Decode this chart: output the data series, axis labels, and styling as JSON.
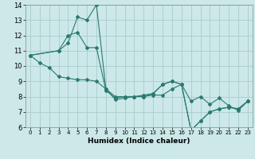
{
  "title": "",
  "xlabel": "Humidex (Indice chaleur)",
  "xlim": [
    -0.5,
    23.5
  ],
  "ylim": [
    6,
    14
  ],
  "xticks": [
    0,
    1,
    2,
    3,
    4,
    5,
    6,
    7,
    8,
    9,
    10,
    11,
    12,
    13,
    14,
    15,
    16,
    17,
    18,
    19,
    20,
    21,
    22,
    23
  ],
  "yticks": [
    6,
    7,
    8,
    9,
    10,
    11,
    12,
    13,
    14
  ],
  "bg_color": "#cce8e8",
  "grid_color": "#aacccc",
  "line_color": "#2a7a70",
  "line1_x": [
    0,
    1,
    2,
    3,
    4,
    5,
    6,
    7,
    8,
    9,
    10,
    11,
    12,
    13,
    14,
    15,
    16,
    17,
    18,
    19,
    20,
    21,
    22,
    23
  ],
  "line1_y": [
    10.7,
    10.2,
    9.9,
    9.3,
    9.2,
    9.1,
    9.1,
    9.0,
    8.5,
    8.0,
    8.0,
    8.0,
    8.0,
    8.1,
    8.1,
    8.5,
    8.8,
    7.7,
    8.0,
    7.5,
    7.9,
    7.4,
    7.1,
    7.7
  ],
  "line2_x": [
    0,
    3,
    4,
    5,
    6,
    7,
    8,
    9,
    10,
    11,
    12,
    13,
    14,
    15,
    16,
    17,
    18,
    19,
    20,
    21,
    22,
    23
  ],
  "line2_y": [
    10.7,
    11.0,
    11.5,
    13.2,
    13.0,
    14.0,
    8.5,
    7.8,
    7.9,
    8.0,
    8.0,
    8.2,
    8.8,
    9.0,
    8.8,
    5.8,
    6.4,
    7.0,
    7.2,
    7.3,
    7.2,
    7.7
  ],
  "line3_x": [
    0,
    3,
    4,
    5,
    6,
    7,
    8,
    9,
    10,
    11,
    12,
    13,
    14,
    15,
    16,
    17,
    18,
    19,
    20,
    21,
    22,
    23
  ],
  "line3_y": [
    10.7,
    11.0,
    12.0,
    12.2,
    11.2,
    11.2,
    8.4,
    7.9,
    8.0,
    8.0,
    8.1,
    8.2,
    8.8,
    9.0,
    8.8,
    5.8,
    6.4,
    7.0,
    7.2,
    7.3,
    7.2,
    7.7
  ]
}
